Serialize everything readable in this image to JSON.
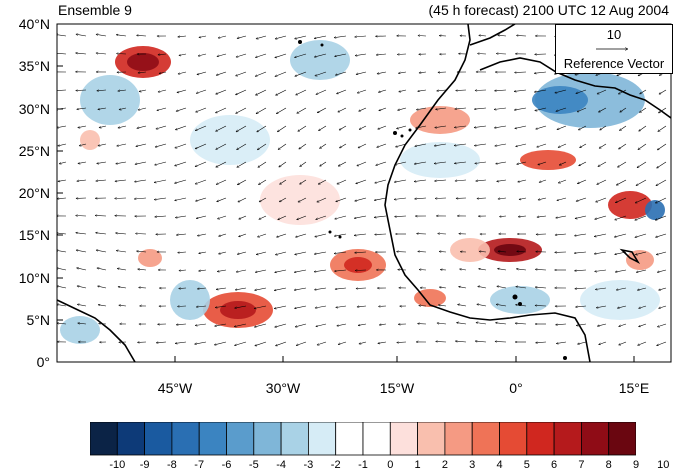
{
  "title_left": "Ensemble 9",
  "title_right": "(45 h forecast) 2100 UTC 12 Aug 2004",
  "lat_labels": [
    "40°N",
    "35°N",
    "30°N",
    "25°N",
    "20°N",
    "15°N",
    "10°N",
    "5°N",
    "0°"
  ],
  "lon_labels": [
    "45°W",
    "30°W",
    "15°W",
    "0°",
    "15°E"
  ],
  "reference_vector": {
    "value": "10",
    "label": "Reference Vector"
  },
  "colorbar": {
    "labels": [
      "-10",
      "-9",
      "-8",
      "-7",
      "-6",
      "-5",
      "-4",
      "-3",
      "-2",
      "-1",
      "0",
      "1",
      "2",
      "3",
      "4",
      "5",
      "6",
      "7",
      "8",
      "9",
      "10"
    ],
    "colors": [
      "#0b2346",
      "#0d3a78",
      "#1a5aa0",
      "#2a6fb3",
      "#3b84c1",
      "#5a9ccc",
      "#7fb6d8",
      "#a9d2e6",
      "#d6ecf6",
      "#ffffff",
      "#ffffff",
      "#fde0dc",
      "#f9bfae",
      "#f59a83",
      "#ef7357",
      "#e54b34",
      "#d0271f",
      "#b51a1c",
      "#8f0c16",
      "#6a0610"
    ]
  },
  "coast_color": "#000000",
  "map_bg": "#ffffff",
  "land_mask_color": "#c8c8c8"
}
